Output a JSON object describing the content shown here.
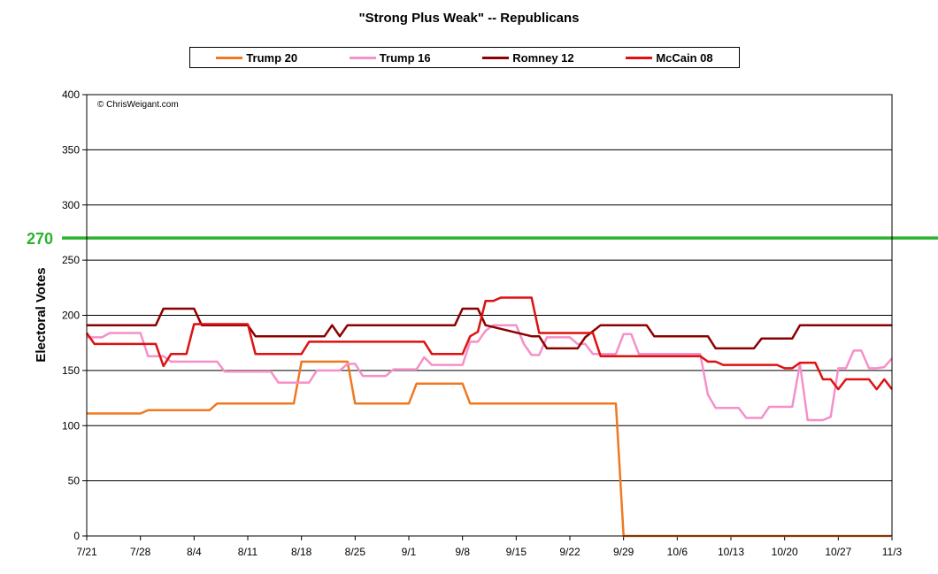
{
  "chart_data": {
    "type": "line",
    "title": "\"Strong Plus Weak\" -- Republicans",
    "ylabel": "Electoral Votes",
    "xlabel": "",
    "ylim": [
      0,
      400
    ],
    "yticks": [
      0,
      50,
      100,
      150,
      200,
      250,
      300,
      350,
      400
    ],
    "xlim": [
      0,
      105
    ],
    "xtick_labels": [
      {
        "label": "7/21",
        "x": 0
      },
      {
        "label": "7/28",
        "x": 7
      },
      {
        "label": "8/4",
        "x": 14
      },
      {
        "label": "8/11",
        "x": 21
      },
      {
        "label": "8/18",
        "x": 28
      },
      {
        "label": "8/25",
        "x": 35
      },
      {
        "label": "9/1",
        "x": 42
      },
      {
        "label": "9/8",
        "x": 49
      },
      {
        "label": "9/15",
        "x": 56
      },
      {
        "label": "9/22",
        "x": 63
      },
      {
        "label": "9/29",
        "x": 70
      },
      {
        "label": "10/6",
        "x": 77
      },
      {
        "label": "10/13",
        "x": 84
      },
      {
        "label": "10/20",
        "x": 91
      },
      {
        "label": "10/27",
        "x": 98
      },
      {
        "label": "11/3",
        "x": 105
      }
    ],
    "watermark": "© ChrisWeigant.com",
    "reference_line": {
      "value": 270,
      "label": "270",
      "color": "#2db22d"
    },
    "grid": true,
    "legend_position": "top",
    "series": [
      {
        "name": "Trump 20",
        "color": "#f07820",
        "points": [
          [
            0,
            111
          ],
          [
            7,
            111
          ],
          [
            8,
            114
          ],
          [
            16,
            114
          ],
          [
            17,
            120
          ],
          [
            27,
            120
          ],
          [
            28,
            158
          ],
          [
            34,
            158
          ],
          [
            35,
            120
          ],
          [
            42,
            120
          ],
          [
            43,
            138
          ],
          [
            49,
            138
          ],
          [
            50,
            120
          ],
          [
            69,
            120
          ],
          [
            70,
            0
          ],
          [
            105,
            0
          ]
        ]
      },
      {
        "name": "Trump 16",
        "color": "#f590c8",
        "points": [
          [
            0,
            180
          ],
          [
            2,
            180
          ],
          [
            3,
            184
          ],
          [
            7,
            184
          ],
          [
            8,
            163
          ],
          [
            10,
            163
          ],
          [
            11,
            158
          ],
          [
            17,
            158
          ],
          [
            18,
            149
          ],
          [
            24,
            149
          ],
          [
            25,
            139
          ],
          [
            29,
            139
          ],
          [
            30,
            150
          ],
          [
            33,
            150
          ],
          [
            34,
            156
          ],
          [
            35,
            156
          ],
          [
            36,
            145
          ],
          [
            39,
            145
          ],
          [
            40,
            151
          ],
          [
            43,
            151
          ],
          [
            44,
            162
          ],
          [
            45,
            155
          ],
          [
            49,
            155
          ],
          [
            50,
            176
          ],
          [
            51,
            176
          ],
          [
            52,
            186
          ],
          [
            53,
            191
          ],
          [
            56,
            191
          ],
          [
            57,
            174
          ],
          [
            58,
            164
          ],
          [
            59,
            164
          ],
          [
            60,
            180
          ],
          [
            63,
            180
          ],
          [
            64,
            174
          ],
          [
            65,
            174
          ],
          [
            66,
            165
          ],
          [
            69,
            165
          ],
          [
            70,
            183
          ],
          [
            71,
            183
          ],
          [
            72,
            165
          ],
          [
            80,
            165
          ],
          [
            81,
            128
          ],
          [
            82,
            116
          ],
          [
            85,
            116
          ],
          [
            86,
            107
          ],
          [
            88,
            107
          ],
          [
            89,
            117
          ],
          [
            92,
            117
          ],
          [
            93,
            156
          ],
          [
            94,
            105
          ],
          [
            96,
            105
          ],
          [
            97,
            108
          ],
          [
            98,
            152
          ],
          [
            99,
            152
          ],
          [
            100,
            168
          ],
          [
            101,
            168
          ],
          [
            102,
            152
          ],
          [
            103,
            152
          ],
          [
            104,
            153
          ],
          [
            105,
            161
          ]
        ]
      },
      {
        "name": "Romney 12",
        "color": "#8b0000",
        "points": [
          [
            0,
            191
          ],
          [
            9,
            191
          ],
          [
            10,
            206
          ],
          [
            14,
            206
          ],
          [
            15,
            191
          ],
          [
            21,
            191
          ],
          [
            22,
            181
          ],
          [
            31,
            181
          ],
          [
            32,
            191
          ],
          [
            33,
            181
          ],
          [
            34,
            191
          ],
          [
            48,
            191
          ],
          [
            49,
            206
          ],
          [
            51,
            206
          ],
          [
            52,
            191
          ],
          [
            58,
            181
          ],
          [
            59,
            181
          ],
          [
            60,
            170
          ],
          [
            64,
            170
          ],
          [
            65,
            180
          ],
          [
            67,
            191
          ],
          [
            73,
            191
          ],
          [
            74,
            181
          ],
          [
            81,
            181
          ],
          [
            82,
            170
          ],
          [
            87,
            170
          ],
          [
            88,
            179
          ],
          [
            92,
            179
          ],
          [
            93,
            191
          ],
          [
            105,
            191
          ]
        ]
      },
      {
        "name": "McCain 08",
        "color": "#dd1111",
        "points": [
          [
            0,
            184
          ],
          [
            1,
            174
          ],
          [
            9,
            174
          ],
          [
            10,
            154
          ],
          [
            11,
            165
          ],
          [
            13,
            165
          ],
          [
            14,
            192
          ],
          [
            21,
            192
          ],
          [
            22,
            165
          ],
          [
            28,
            165
          ],
          [
            29,
            176
          ],
          [
            44,
            176
          ],
          [
            45,
            165
          ],
          [
            49,
            165
          ],
          [
            50,
            181
          ],
          [
            51,
            185
          ],
          [
            52,
            213
          ],
          [
            53,
            213
          ],
          [
            54,
            216
          ],
          [
            58,
            216
          ],
          [
            59,
            184
          ],
          [
            66,
            184
          ],
          [
            67,
            163
          ],
          [
            80,
            163
          ],
          [
            81,
            158
          ],
          [
            82,
            158
          ],
          [
            83,
            155
          ],
          [
            90,
            155
          ],
          [
            91,
            152
          ],
          [
            92,
            152
          ],
          [
            93,
            157
          ],
          [
            95,
            157
          ],
          [
            96,
            142
          ],
          [
            97,
            142
          ],
          [
            98,
            133
          ],
          [
            99,
            142
          ],
          [
            102,
            142
          ],
          [
            103,
            133
          ],
          [
            104,
            142
          ],
          [
            105,
            133
          ],
          [
            106,
            133
          ]
        ]
      }
    ]
  }
}
